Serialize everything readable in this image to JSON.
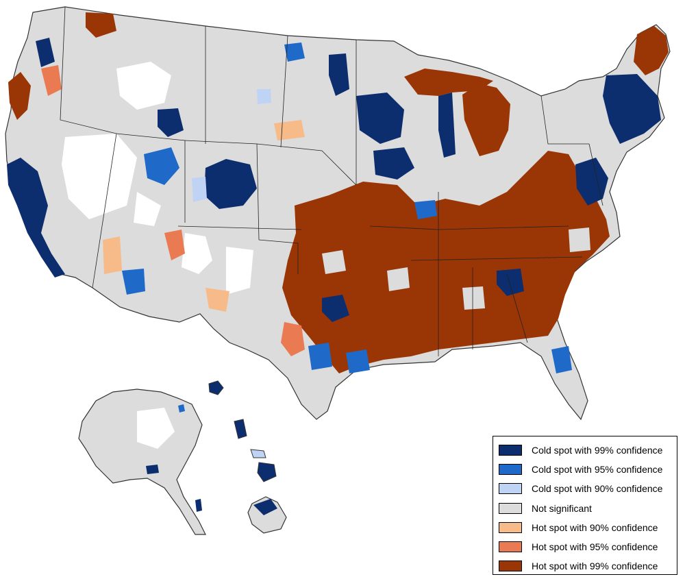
{
  "legend": {
    "items": [
      {
        "label": "Cold spot with 99% confidence",
        "color": "#0d2e6e"
      },
      {
        "label": "Cold spot with 95% confidence",
        "color": "#1f69c9"
      },
      {
        "label": "Cold spot with 90% confidence",
        "color": "#bfd3f5"
      },
      {
        "label": "Not significant",
        "color": "#dcdcdc"
      },
      {
        "label": "Hot spot with 90% confidence",
        "color": "#f7bb8a"
      },
      {
        "label": "Hot spot with 95% confidence",
        "color": "#ea7a52"
      },
      {
        "label": "Hot spot with 99% confidence",
        "color": "#9a3506"
      }
    ]
  }
}
